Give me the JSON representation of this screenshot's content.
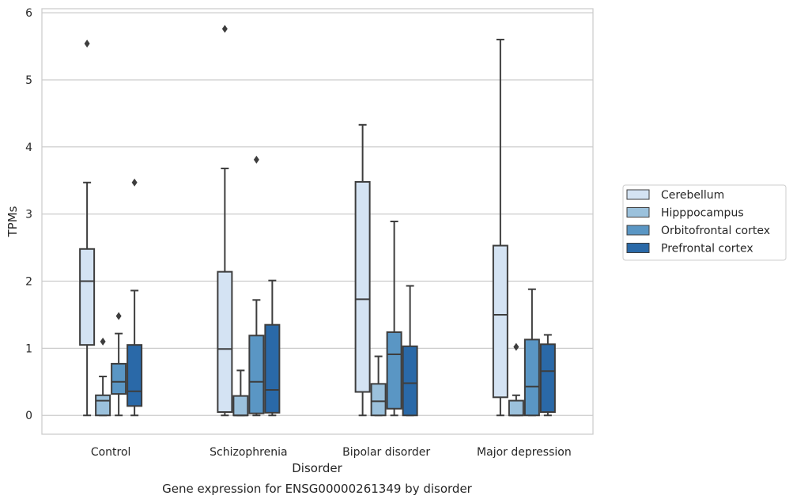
{
  "caption": "Gene expression for ENSG00000261349 by disorder",
  "chart_data": {
    "type": "box",
    "title": "",
    "xlabel": "Disorder",
    "ylabel": "TPMs",
    "ylim": [
      -0.28,
      6.06
    ],
    "yticks": [
      "0",
      "1",
      "2",
      "3",
      "4",
      "5",
      "6"
    ],
    "grid": "horizontal",
    "legend_placement": "right",
    "categories": [
      "Control",
      "Schizophrenia",
      "Bipolar disorder",
      "Major depression"
    ],
    "series": [
      {
        "name": "Cerebellum",
        "color": "#d4e3f3",
        "boxes": [
          {
            "whislo": 0.0,
            "q1": 1.05,
            "med": 2.0,
            "q3": 2.48,
            "whishi": 3.47,
            "fliers": [
              5.54
            ]
          },
          {
            "whislo": 0.0,
            "q1": 0.05,
            "med": 0.99,
            "q3": 2.14,
            "whishi": 3.68,
            "fliers": [
              5.76
            ]
          },
          {
            "whislo": 0.0,
            "q1": 0.35,
            "med": 1.73,
            "q3": 3.48,
            "whishi": 4.33,
            "fliers": []
          },
          {
            "whislo": 0.0,
            "q1": 0.27,
            "med": 1.5,
            "q3": 2.53,
            "whishi": 5.6,
            "fliers": []
          }
        ]
      },
      {
        "name": "Hipppocampus",
        "color": "#9bc1dc",
        "boxes": [
          {
            "whislo": 0.0,
            "q1": 0.0,
            "med": 0.22,
            "q3": 0.3,
            "whishi": 0.58,
            "fliers": [
              1.1
            ]
          },
          {
            "whislo": 0.0,
            "q1": 0.0,
            "med": 0.0,
            "q3": 0.29,
            "whishi": 0.67,
            "fliers": []
          },
          {
            "whislo": 0.0,
            "q1": 0.0,
            "med": 0.21,
            "q3": 0.47,
            "whishi": 0.88,
            "fliers": []
          },
          {
            "whislo": 0.0,
            "q1": 0.0,
            "med": 0.0,
            "q3": 0.22,
            "whishi": 0.3,
            "fliers": [
              1.02
            ]
          }
        ]
      },
      {
        "name": "Orbitofrontal cortex",
        "color": "#5a96c4",
        "boxes": [
          {
            "whislo": 0.0,
            "q1": 0.32,
            "med": 0.5,
            "q3": 0.77,
            "whishi": 1.22,
            "fliers": [
              1.48
            ]
          },
          {
            "whislo": 0.0,
            "q1": 0.03,
            "med": 0.5,
            "q3": 1.19,
            "whishi": 1.72,
            "fliers": [
              3.81
            ]
          },
          {
            "whislo": 0.0,
            "q1": 0.1,
            "med": 0.91,
            "q3": 1.24,
            "whishi": 2.89,
            "fliers": []
          },
          {
            "whislo": 0.0,
            "q1": 0.0,
            "med": 0.43,
            "q3": 1.13,
            "whishi": 1.88,
            "fliers": []
          }
        ]
      },
      {
        "name": "Prefrontal cortex",
        "color": "#2a69a8",
        "boxes": [
          {
            "whislo": 0.0,
            "q1": 0.14,
            "med": 0.36,
            "q3": 1.05,
            "whishi": 1.86,
            "fliers": [
              3.47
            ]
          },
          {
            "whislo": 0.0,
            "q1": 0.04,
            "med": 0.38,
            "q3": 1.35,
            "whishi": 2.01,
            "fliers": []
          },
          {
            "whislo": 0.0,
            "q1": 0.0,
            "med": 0.48,
            "q3": 1.03,
            "whishi": 1.93,
            "fliers": []
          },
          {
            "whislo": 0.0,
            "q1": 0.05,
            "med": 0.66,
            "q3": 1.06,
            "whishi": 1.2,
            "fliers": []
          }
        ]
      }
    ]
  }
}
